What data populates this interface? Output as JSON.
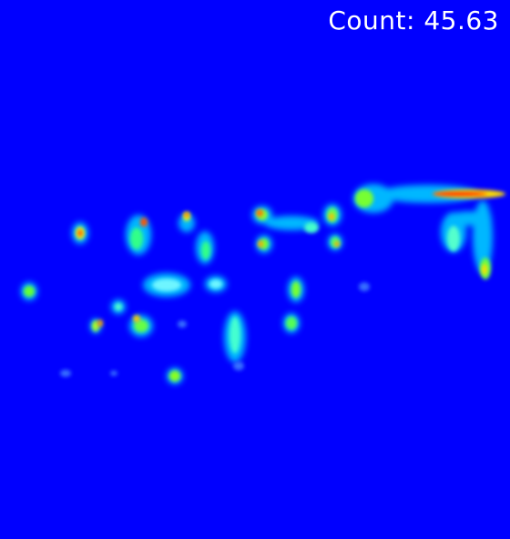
{
  "overlay": {
    "count_label": "Count:",
    "count_value": "45.63"
  },
  "colors": {
    "background": "#0000ff",
    "text": "#ffffff",
    "colormap": [
      "#0000ff",
      "#00c8ff",
      "#00ffcc",
      "#66ff33",
      "#ffff00",
      "#ff8800",
      "#ff0000"
    ]
  }
}
